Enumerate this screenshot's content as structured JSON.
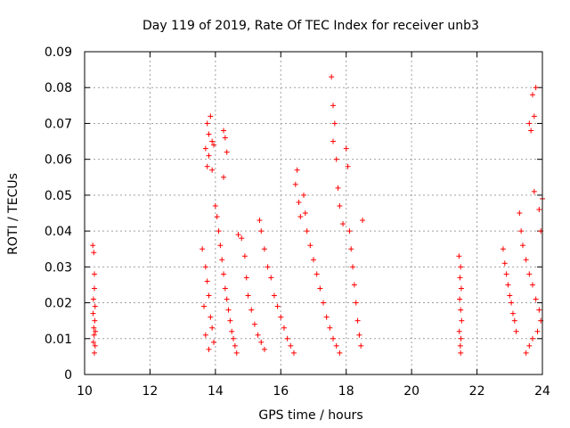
{
  "chart_data": {
    "type": "scatter",
    "title": "Day 119 of 2019, Rate Of TEC Index for receiver unb3",
    "xlabel": "GPS time / hours",
    "ylabel": "ROTI / TECUs",
    "xlim": [
      10,
      24
    ],
    "ylim": [
      0,
      0.09
    ],
    "xticks": [
      10,
      12,
      14,
      16,
      18,
      20,
      22,
      24
    ],
    "xtick_labels": [
      "10",
      "12",
      "14",
      "16",
      "18",
      "20",
      "22",
      "24"
    ],
    "yticks": [
      0,
      0.01,
      0.02,
      0.03,
      0.04,
      0.05,
      0.06,
      0.07,
      0.08,
      0.09
    ],
    "ytick_labels": [
      "0",
      "0.01",
      "0.02",
      "0.03",
      "0.04",
      "0.05",
      "0.06",
      "0.07",
      "0.08",
      "0.09"
    ],
    "grid": true,
    "marker": "+",
    "marker_color": "#ff0000",
    "series": [
      {
        "name": "ROTI",
        "points": [
          [
            10.25,
            0.036
          ],
          [
            10.28,
            0.034
          ],
          [
            10.3,
            0.028
          ],
          [
            10.3,
            0.024
          ],
          [
            10.27,
            0.021
          ],
          [
            10.32,
            0.019
          ],
          [
            10.26,
            0.017
          ],
          [
            10.31,
            0.015
          ],
          [
            10.28,
            0.013
          ],
          [
            10.33,
            0.012
          ],
          [
            10.29,
            0.011
          ],
          [
            10.27,
            0.009
          ],
          [
            10.32,
            0.008
          ],
          [
            10.3,
            0.006
          ],
          [
            13.6,
            0.035
          ],
          [
            13.7,
            0.03
          ],
          [
            13.75,
            0.026
          ],
          [
            13.8,
            0.022
          ],
          [
            13.65,
            0.019
          ],
          [
            13.85,
            0.016
          ],
          [
            13.9,
            0.013
          ],
          [
            13.7,
            0.011
          ],
          [
            13.95,
            0.009
          ],
          [
            13.8,
            0.007
          ],
          [
            13.85,
            0.072
          ],
          [
            13.75,
            0.07
          ],
          [
            13.8,
            0.067
          ],
          [
            13.9,
            0.065
          ],
          [
            13.7,
            0.063
          ],
          [
            13.8,
            0.061
          ],
          [
            13.95,
            0.064
          ],
          [
            13.75,
            0.058
          ],
          [
            13.9,
            0.057
          ],
          [
            14.0,
            0.047
          ],
          [
            14.05,
            0.044
          ],
          [
            14.1,
            0.04
          ],
          [
            14.15,
            0.036
          ],
          [
            14.2,
            0.032
          ],
          [
            14.25,
            0.028
          ],
          [
            14.3,
            0.024
          ],
          [
            14.35,
            0.021
          ],
          [
            14.4,
            0.018
          ],
          [
            14.45,
            0.015
          ],
          [
            14.5,
            0.012
          ],
          [
            14.55,
            0.01
          ],
          [
            14.6,
            0.008
          ],
          [
            14.65,
            0.006
          ],
          [
            14.25,
            0.068
          ],
          [
            14.3,
            0.066
          ],
          [
            14.35,
            0.062
          ],
          [
            14.25,
            0.055
          ],
          [
            14.7,
            0.039
          ],
          [
            14.8,
            0.038
          ],
          [
            14.9,
            0.033
          ],
          [
            14.95,
            0.027
          ],
          [
            15.0,
            0.022
          ],
          [
            15.1,
            0.018
          ],
          [
            15.2,
            0.014
          ],
          [
            15.3,
            0.011
          ],
          [
            15.4,
            0.009
          ],
          [
            15.5,
            0.007
          ],
          [
            15.35,
            0.043
          ],
          [
            15.4,
            0.04
          ],
          [
            15.5,
            0.035
          ],
          [
            15.6,
            0.03
          ],
          [
            15.7,
            0.027
          ],
          [
            15.8,
            0.022
          ],
          [
            15.9,
            0.019
          ],
          [
            16.0,
            0.016
          ],
          [
            16.1,
            0.013
          ],
          [
            16.2,
            0.01
          ],
          [
            16.3,
            0.008
          ],
          [
            16.4,
            0.006
          ],
          [
            16.45,
            0.053
          ],
          [
            16.5,
            0.057
          ],
          [
            16.55,
            0.048
          ],
          [
            16.6,
            0.044
          ],
          [
            16.7,
            0.05
          ],
          [
            16.75,
            0.045
          ],
          [
            16.8,
            0.04
          ],
          [
            16.9,
            0.036
          ],
          [
            17.0,
            0.032
          ],
          [
            17.1,
            0.028
          ],
          [
            17.2,
            0.024
          ],
          [
            17.3,
            0.02
          ],
          [
            17.4,
            0.016
          ],
          [
            17.5,
            0.013
          ],
          [
            17.6,
            0.01
          ],
          [
            17.7,
            0.008
          ],
          [
            17.8,
            0.006
          ],
          [
            17.55,
            0.083
          ],
          [
            17.6,
            0.075
          ],
          [
            17.65,
            0.07
          ],
          [
            17.6,
            0.065
          ],
          [
            17.7,
            0.06
          ],
          [
            17.75,
            0.052
          ],
          [
            17.8,
            0.047
          ],
          [
            17.9,
            0.042
          ],
          [
            18.0,
            0.063
          ],
          [
            18.05,
            0.058
          ],
          [
            18.1,
            0.04
          ],
          [
            18.15,
            0.035
          ],
          [
            18.2,
            0.03
          ],
          [
            18.25,
            0.025
          ],
          [
            18.3,
            0.02
          ],
          [
            18.35,
            0.015
          ],
          [
            18.4,
            0.011
          ],
          [
            18.45,
            0.008
          ],
          [
            18.5,
            0.043
          ],
          [
            21.45,
            0.033
          ],
          [
            21.5,
            0.03
          ],
          [
            21.48,
            0.027
          ],
          [
            21.52,
            0.024
          ],
          [
            21.47,
            0.021
          ],
          [
            21.5,
            0.018
          ],
          [
            21.53,
            0.015
          ],
          [
            21.46,
            0.012
          ],
          [
            21.51,
            0.01
          ],
          [
            21.49,
            0.008
          ],
          [
            21.5,
            0.006
          ],
          [
            22.8,
            0.035
          ],
          [
            22.85,
            0.031
          ],
          [
            22.9,
            0.028
          ],
          [
            22.95,
            0.025
          ],
          [
            23.0,
            0.022
          ],
          [
            23.05,
            0.02
          ],
          [
            23.1,
            0.017
          ],
          [
            23.15,
            0.015
          ],
          [
            23.2,
            0.012
          ],
          [
            23.3,
            0.045
          ],
          [
            23.35,
            0.04
          ],
          [
            23.4,
            0.036
          ],
          [
            23.5,
            0.032
          ],
          [
            23.6,
            0.028
          ],
          [
            23.7,
            0.025
          ],
          [
            23.8,
            0.021
          ],
          [
            23.9,
            0.018
          ],
          [
            23.95,
            0.015
          ],
          [
            23.85,
            0.012
          ],
          [
            23.7,
            0.01
          ],
          [
            23.6,
            0.008
          ],
          [
            23.5,
            0.006
          ],
          [
            23.6,
            0.07
          ],
          [
            23.65,
            0.068
          ],
          [
            23.75,
            0.072
          ],
          [
            23.7,
            0.078
          ],
          [
            23.8,
            0.08
          ],
          [
            23.75,
            0.051
          ],
          [
            23.9,
            0.046
          ],
          [
            23.95,
            0.04
          ],
          [
            24.0,
            0.049
          ]
        ]
      }
    ]
  }
}
